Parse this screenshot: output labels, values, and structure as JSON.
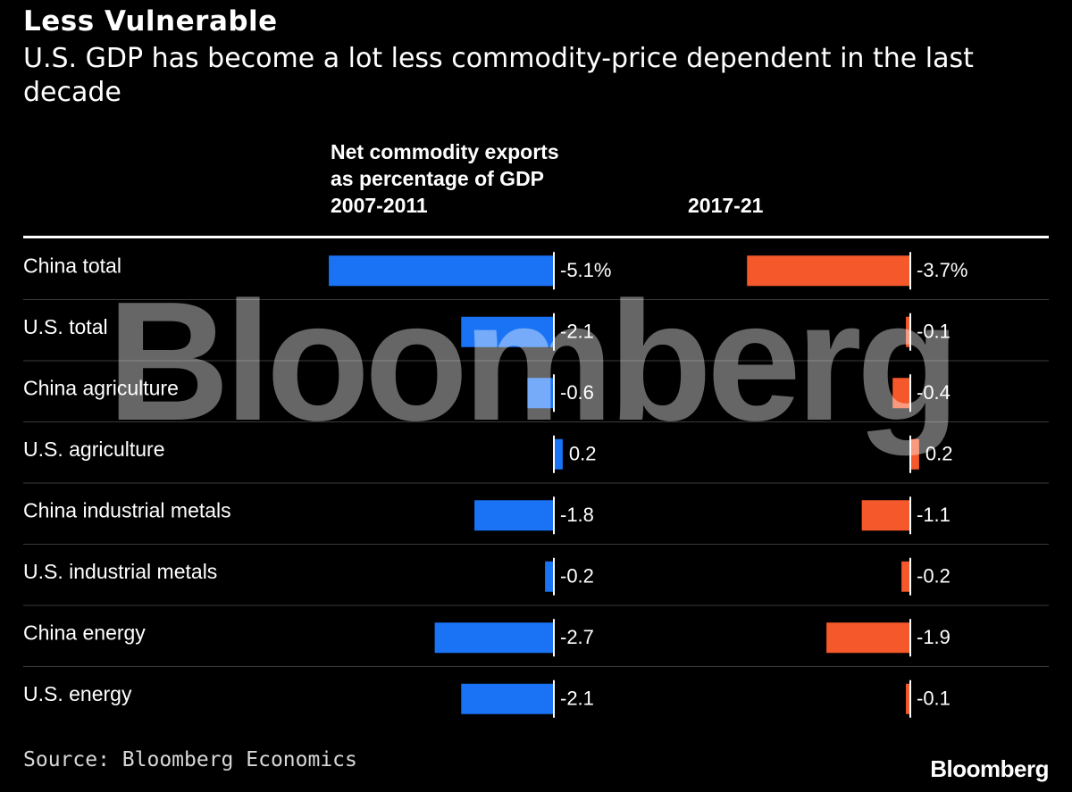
{
  "header": {
    "title": "Less Vulnerable",
    "subtitle": "U.S. GDP has become a lot less commodity-price dependent in the last decade"
  },
  "columns": {
    "left_heading": [
      "Net commodity exports",
      "as percentage of GDP",
      "2007-2011"
    ],
    "right_heading": "2017-21"
  },
  "watermark": "Bloomberg",
  "footer": {
    "source": "Source: Bloomberg Economics",
    "brand": "Bloomberg"
  },
  "colors": {
    "background": "#000000",
    "series_2007_2011": "#1a73f5",
    "series_2017_21": "#f5582a",
    "gridline": "#3a3a3a",
    "baseline": "#ffffff"
  },
  "chart_data": {
    "type": "bar",
    "orientation": "horizontal",
    "title": "Less Vulnerable",
    "categories": [
      "China total",
      "U.S. total",
      "China agriculture",
      "U.S. agriculture",
      "China industrial metals",
      "U.S. industrial metals",
      "China energy",
      "U.S. energy"
    ],
    "series": [
      {
        "name": "2007-2011",
        "values": [
          -5.1,
          -2.1,
          -0.6,
          0.2,
          -1.8,
          -0.2,
          -2.7,
          -2.1
        ],
        "labels": [
          "-5.1%",
          "-2.1",
          "-0.6",
          "0.2",
          "-1.8",
          "-0.2",
          "-2.7",
          "-2.1"
        ]
      },
      {
        "name": "2017-21",
        "values": [
          -3.7,
          -0.1,
          -0.4,
          0.2,
          -1.1,
          -0.2,
          -1.9,
          -0.1
        ],
        "labels": [
          "-3.7%",
          "-0.1",
          "-0.4",
          "0.2",
          "-1.1",
          "-0.2",
          "-1.9",
          "-0.1"
        ]
      }
    ],
    "unit": "% of GDP"
  }
}
